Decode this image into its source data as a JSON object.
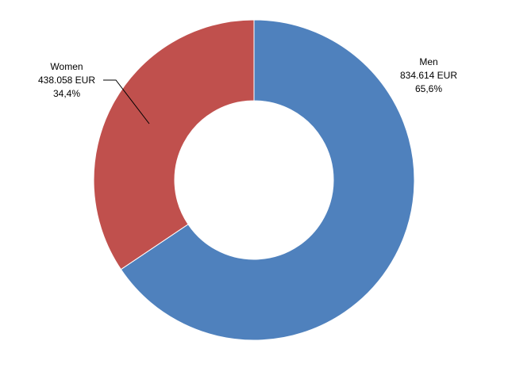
{
  "chart_data": {
    "type": "pie",
    "variant": "donut",
    "slices": [
      {
        "name": "Men",
        "value": 834614,
        "value_label": "834.614 EUR",
        "percent": 65.6,
        "percent_label": "65,6%",
        "color": "#4F81BD"
      },
      {
        "name": "Women",
        "value": 438058,
        "value_label": "438.058 EUR",
        "percent": 34.4,
        "percent_label": "34,4%",
        "color": "#C0504D"
      }
    ],
    "start": "12 o'clock",
    "direction": "clockwise",
    "legend": "none",
    "data_labels": "outside"
  }
}
